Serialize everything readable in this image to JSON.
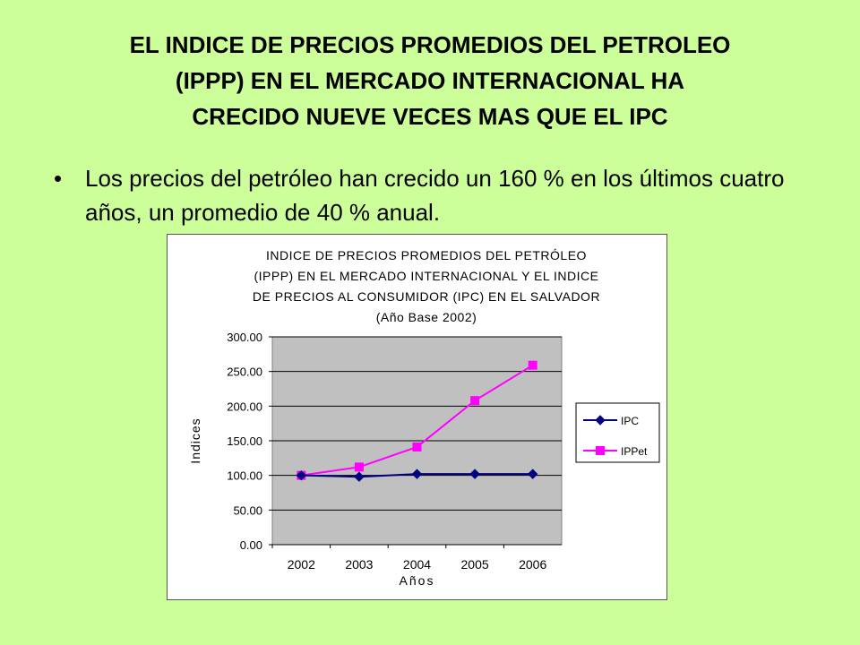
{
  "slide": {
    "title_lines": [
      "EL INDICE DE PRECIOS PROMEDIOS DEL PETROLEO",
      "(IPPP) EN EL MERCADO INTERNACIONAL HA",
      "CRECIDO NUEVE VECES MAS QUE EL IPC"
    ],
    "bullet_symbol": "•",
    "bullet_text": "Los precios del petróleo han crecido un 160 % en los últimos cuatro años, un promedio de 40 % anual."
  },
  "colors": {
    "background": "#ccff99",
    "plot_area": "#c0c0c0",
    "ipc": "#000080",
    "ippet": "#ff00ff"
  },
  "chart_data": {
    "type": "line",
    "title_lines": [
      "INDICE DE PRECIOS PROMEDIOS DEL PETRÓLEO",
      "(IPPP) EN EL MERCADO INTERNACIONAL Y EL INDICE",
      "DE PRECIOS AL CONSUMIDOR (IPC) EN EL SALVADOR",
      "(Año Base 2002)"
    ],
    "xlabel": "Años",
    "ylabel": "Indices",
    "categories": [
      "2002",
      "2003",
      "2004",
      "2005",
      "2006"
    ],
    "ylim": [
      0,
      300
    ],
    "yticks": [
      "0.00",
      "50.00",
      "100.00",
      "150.00",
      "200.00",
      "250.00",
      "300.00"
    ],
    "grid": true,
    "legend_position": "right",
    "series": [
      {
        "name": "IPC",
        "marker": "diamond",
        "values": [
          100,
          98,
          102,
          102,
          102
        ]
      },
      {
        "name": "IPPet",
        "marker": "square",
        "values": [
          100,
          112,
          141,
          208,
          259
        ]
      }
    ]
  }
}
